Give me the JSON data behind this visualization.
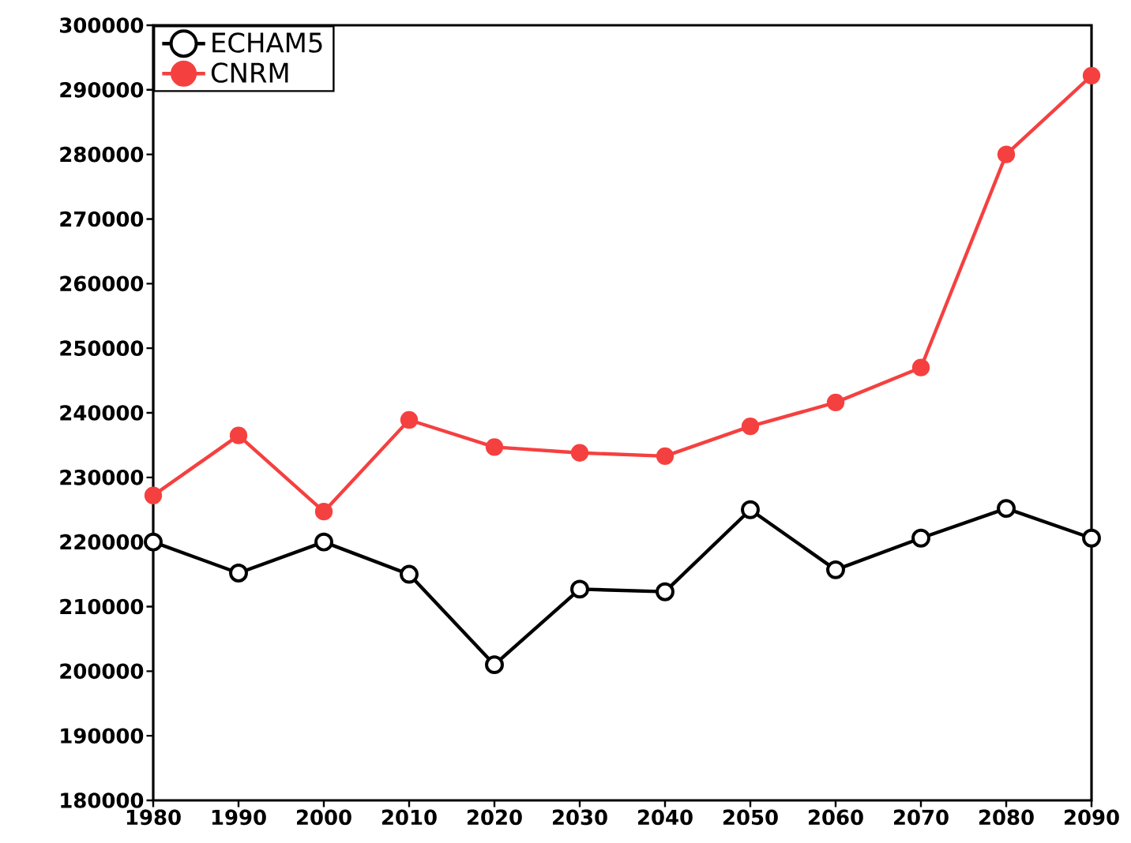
{
  "chart_data": {
    "type": "line",
    "x": [
      1980,
      1990,
      2000,
      2010,
      2020,
      2030,
      2040,
      2050,
      2060,
      2070,
      2080,
      2090
    ],
    "series": [
      {
        "name": "ECHAM5",
        "color": "#000000",
        "values": [
          220000,
          215200,
          220000,
          215000,
          201000,
          212700,
          212300,
          225000,
          215700,
          220600,
          225200,
          220600
        ]
      },
      {
        "name": "CNRM",
        "color": "#f54040",
        "values": [
          227200,
          236500,
          224700,
          238900,
          234700,
          233800,
          233300,
          237900,
          241600,
          247000,
          280000,
          292200
        ]
      }
    ],
    "xlim": [
      1980,
      2090
    ],
    "xticks": [
      1980,
      1990,
      2000,
      2010,
      2020,
      2030,
      2040,
      2050,
      2060,
      2070,
      2080,
      2090
    ],
    "ylim": [
      180000,
      300000
    ],
    "yticks": [
      180000,
      190000,
      200000,
      210000,
      220000,
      230000,
      240000,
      250000,
      260000,
      270000,
      280000,
      290000,
      300000
    ],
    "grid": false,
    "legend": "top left",
    "marker": "circle",
    "line_style": "solid"
  }
}
